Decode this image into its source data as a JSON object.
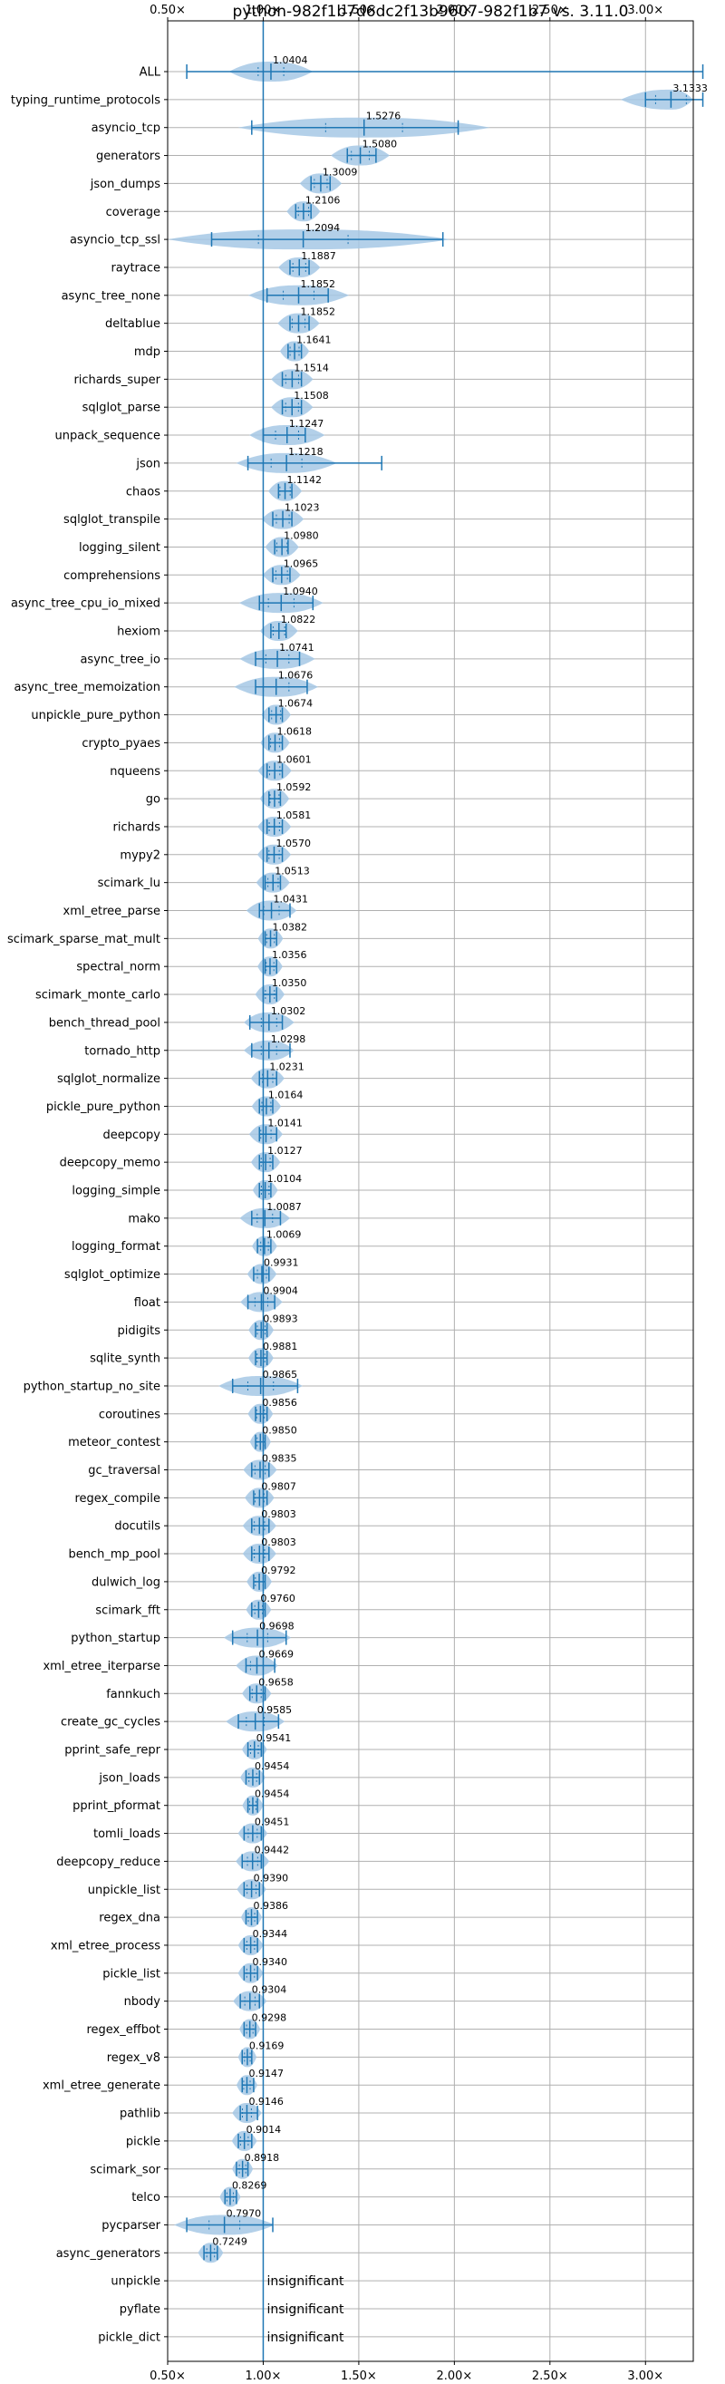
{
  "chart_data": {
    "type": "violin",
    "title": "python-982f1b7d6dc2f13b9607-982f1b7 vs. 3.11.0",
    "xlabel": "",
    "ylabel": "",
    "xlim": [
      0.5,
      3.25
    ],
    "x_ticks": [
      0.5,
      1.0,
      1.5,
      2.0,
      2.5,
      3.0
    ],
    "x_tick_labels": [
      "0.50×",
      "1.00×",
      "1.50×",
      "2.00×",
      "2.50×",
      "3.00×"
    ],
    "reference_line": 1.0,
    "grid": true,
    "color": "#1f77b4",
    "violin_color": "#a6c8e5",
    "insignificant_label": "insignificant",
    "benchmarks": [
      {
        "name": "ALL",
        "value": 1.0404,
        "label": "1.0404",
        "min": 0.6,
        "max": 3.3,
        "spread": 0.1
      },
      {
        "name": "typing_runtime_protocols",
        "value": 3.1333,
        "label": "3.1333",
        "min": 3.0,
        "max": 3.3,
        "spread": 0.12
      },
      {
        "name": "asyncio_tcp",
        "value": 1.5276,
        "label": "1.5276",
        "min": 0.94,
        "max": 2.02,
        "spread": 0.3
      },
      {
        "name": "generators",
        "value": 1.508,
        "label": "1.5080",
        "min": 1.44,
        "max": 1.59,
        "spread": 0.07
      },
      {
        "name": "json_dumps",
        "value": 1.3009,
        "label": "1.3009",
        "min": 1.25,
        "max": 1.35,
        "spread": 0.05
      },
      {
        "name": "coverage",
        "value": 1.2106,
        "label": "1.2106",
        "min": 1.17,
        "max": 1.25,
        "spread": 0.04
      },
      {
        "name": "asyncio_tcp_ssl",
        "value": 1.2094,
        "label": "1.2094",
        "min": 0.73,
        "max": 1.94,
        "spread": 0.35
      },
      {
        "name": "raytrace",
        "value": 1.1887,
        "label": "1.1887",
        "min": 1.14,
        "max": 1.24,
        "spread": 0.05
      },
      {
        "name": "async_tree_none",
        "value": 1.1852,
        "label": "1.1852",
        "min": 1.02,
        "max": 1.34,
        "spread": 0.12
      },
      {
        "name": "deltablue",
        "value": 1.1852,
        "label": "1.1852",
        "min": 1.14,
        "max": 1.24,
        "spread": 0.05
      },
      {
        "name": "mdp",
        "value": 1.1641,
        "label": "1.1641",
        "min": 1.13,
        "max": 1.2,
        "spread": 0.035
      },
      {
        "name": "richards_super",
        "value": 1.1514,
        "label": "1.1514",
        "min": 1.1,
        "max": 1.2,
        "spread": 0.05
      },
      {
        "name": "sqlglot_parse",
        "value": 1.1508,
        "label": "1.1508",
        "min": 1.1,
        "max": 1.2,
        "spread": 0.05
      },
      {
        "name": "unpack_sequence",
        "value": 1.1247,
        "label": "1.1247",
        "min": 1.0,
        "max": 1.22,
        "spread": 0.09
      },
      {
        "name": "json",
        "value": 1.1218,
        "label": "1.1218",
        "min": 0.92,
        "max": 1.62,
        "spread": 0.12
      },
      {
        "name": "chaos",
        "value": 1.1142,
        "label": "1.1142",
        "min": 1.08,
        "max": 1.15,
        "spread": 0.04
      },
      {
        "name": "sqlglot_transpile",
        "value": 1.1023,
        "label": "1.1023",
        "min": 1.05,
        "max": 1.15,
        "spread": 0.05
      },
      {
        "name": "logging_silent",
        "value": 1.098,
        "label": "1.0980",
        "min": 1.06,
        "max": 1.13,
        "spread": 0.04
      },
      {
        "name": "comprehensions",
        "value": 1.0965,
        "label": "1.0965",
        "min": 1.05,
        "max": 1.14,
        "spread": 0.045
      },
      {
        "name": "async_tree_cpu_io_mixed",
        "value": 1.094,
        "label": "1.0940",
        "min": 0.98,
        "max": 1.26,
        "spread": 0.1
      },
      {
        "name": "hexiom",
        "value": 1.0822,
        "label": "1.0822",
        "min": 1.04,
        "max": 1.12,
        "spread": 0.045
      },
      {
        "name": "async_tree_io",
        "value": 1.0741,
        "label": "1.0741",
        "min": 0.96,
        "max": 1.19,
        "spread": 0.09
      },
      {
        "name": "async_tree_memoization",
        "value": 1.0676,
        "label": "1.0676",
        "min": 0.96,
        "max": 1.23,
        "spread": 0.1
      },
      {
        "name": "unpickle_pure_python",
        "value": 1.0674,
        "label": "1.0674",
        "min": 1.03,
        "max": 1.1,
        "spread": 0.035
      },
      {
        "name": "crypto_pyaes",
        "value": 1.0618,
        "label": "1.0618",
        "min": 1.03,
        "max": 1.1,
        "spread": 0.035
      },
      {
        "name": "nqueens",
        "value": 1.0601,
        "label": "1.0601",
        "min": 1.02,
        "max": 1.1,
        "spread": 0.04
      },
      {
        "name": "go",
        "value": 1.0592,
        "label": "1.0592",
        "min": 1.03,
        "max": 1.09,
        "spread": 0.035
      },
      {
        "name": "richards",
        "value": 1.0581,
        "label": "1.0581",
        "min": 1.02,
        "max": 1.1,
        "spread": 0.04
      },
      {
        "name": "mypy2",
        "value": 1.057,
        "label": "1.0570",
        "min": 1.02,
        "max": 1.1,
        "spread": 0.04
      },
      {
        "name": "scimark_lu",
        "value": 1.0513,
        "label": "1.0513",
        "min": 1.01,
        "max": 1.09,
        "spread": 0.04
      },
      {
        "name": "xml_etree_parse",
        "value": 1.0431,
        "label": "1.0431",
        "min": 0.98,
        "max": 1.14,
        "spread": 0.06
      },
      {
        "name": "scimark_sparse_mat_mult",
        "value": 1.0382,
        "label": "1.0382",
        "min": 1.01,
        "max": 1.07,
        "spread": 0.03
      },
      {
        "name": "spectral_norm",
        "value": 1.0356,
        "label": "1.0356",
        "min": 1.01,
        "max": 1.07,
        "spread": 0.03
      },
      {
        "name": "scimark_monte_carlo",
        "value": 1.035,
        "label": "1.0350",
        "min": 1.0,
        "max": 1.07,
        "spread": 0.035
      },
      {
        "name": "bench_thread_pool",
        "value": 1.0302,
        "label": "1.0302",
        "min": 0.93,
        "max": 1.1,
        "spread": 0.06
      },
      {
        "name": "tornado_http",
        "value": 1.0298,
        "label": "1.0298",
        "min": 0.94,
        "max": 1.14,
        "spread": 0.06
      },
      {
        "name": "sqlglot_normalize",
        "value": 1.0231,
        "label": "1.0231",
        "min": 0.98,
        "max": 1.07,
        "spread": 0.04
      },
      {
        "name": "pickle_pure_python",
        "value": 1.0164,
        "label": "1.0164",
        "min": 0.98,
        "max": 1.05,
        "spread": 0.035
      },
      {
        "name": "deepcopy",
        "value": 1.0141,
        "label": "1.0141",
        "min": 0.98,
        "max": 1.07,
        "spread": 0.04
      },
      {
        "name": "deepcopy_memo",
        "value": 1.0127,
        "label": "1.0127",
        "min": 0.98,
        "max": 1.05,
        "spread": 0.035
      },
      {
        "name": "logging_simple",
        "value": 1.0104,
        "label": "1.0104",
        "min": 0.98,
        "max": 1.04,
        "spread": 0.03
      },
      {
        "name": "mako",
        "value": 1.0087,
        "label": "1.0087",
        "min": 0.94,
        "max": 1.09,
        "spread": 0.06
      },
      {
        "name": "logging_format",
        "value": 1.0069,
        "label": "1.0069",
        "min": 0.97,
        "max": 1.04,
        "spread": 0.03
      },
      {
        "name": "sqlglot_optimize",
        "value": 0.9931,
        "label": "0.9931",
        "min": 0.95,
        "max": 1.03,
        "spread": 0.035
      },
      {
        "name": "float",
        "value": 0.9904,
        "label": "0.9904",
        "min": 0.92,
        "max": 1.06,
        "spread": 0.05
      },
      {
        "name": "pidigits",
        "value": 0.9893,
        "label": "0.9893",
        "min": 0.96,
        "max": 1.02,
        "spread": 0.03
      },
      {
        "name": "sqlite_synth",
        "value": 0.9881,
        "label": "0.9881",
        "min": 0.96,
        "max": 1.02,
        "spread": 0.03
      },
      {
        "name": "python_startup_no_site",
        "value": 0.9865,
        "label": "0.9865",
        "min": 0.84,
        "max": 1.18,
        "spread": 0.1
      },
      {
        "name": "coroutines",
        "value": 0.9856,
        "label": "0.9856",
        "min": 0.96,
        "max": 1.02,
        "spread": 0.03
      },
      {
        "name": "meteor_contest",
        "value": 0.985,
        "label": "0.9850",
        "min": 0.96,
        "max": 1.01,
        "spread": 0.025
      },
      {
        "name": "gc_traversal",
        "value": 0.9835,
        "label": "0.9835",
        "min": 0.94,
        "max": 1.03,
        "spread": 0.04
      },
      {
        "name": "regex_compile",
        "value": 0.9807,
        "label": "0.9807",
        "min": 0.95,
        "max": 1.02,
        "spread": 0.035
      },
      {
        "name": "docutils",
        "value": 0.9803,
        "label": "0.9803",
        "min": 0.94,
        "max": 1.03,
        "spread": 0.04
      },
      {
        "name": "bench_mp_pool",
        "value": 0.9803,
        "label": "0.9803",
        "min": 0.94,
        "max": 1.03,
        "spread": 0.04
      },
      {
        "name": "dulwich_log",
        "value": 0.9792,
        "label": "0.9792",
        "min": 0.95,
        "max": 1.01,
        "spread": 0.03
      },
      {
        "name": "scimark_fft",
        "value": 0.976,
        "label": "0.9760",
        "min": 0.94,
        "max": 1.01,
        "spread": 0.03
      },
      {
        "name": "python_startup",
        "value": 0.9698,
        "label": "0.9698",
        "min": 0.84,
        "max": 1.12,
        "spread": 0.08
      },
      {
        "name": "xml_etree_iterparse",
        "value": 0.9669,
        "label": "0.9669",
        "min": 0.91,
        "max": 1.06,
        "spread": 0.05
      },
      {
        "name": "fannkuch",
        "value": 0.9658,
        "label": "0.9658",
        "min": 0.93,
        "max": 1.01,
        "spread": 0.035
      },
      {
        "name": "create_gc_cycles",
        "value": 0.9585,
        "label": "0.9585",
        "min": 0.87,
        "max": 1.08,
        "spread": 0.07
      },
      {
        "name": "pprint_safe_repr",
        "value": 0.9541,
        "label": "0.9541",
        "min": 0.92,
        "max": 0.99,
        "spread": 0.03
      },
      {
        "name": "json_loads",
        "value": 0.9454,
        "label": "0.9454",
        "min": 0.91,
        "max": 0.98,
        "spread": 0.03
      },
      {
        "name": "pprint_pformat",
        "value": 0.9454,
        "label": "0.9454",
        "min": 0.92,
        "max": 0.97,
        "spread": 0.025
      },
      {
        "name": "tomli_loads",
        "value": 0.9451,
        "label": "0.9451",
        "min": 0.9,
        "max": 0.99,
        "spread": 0.035
      },
      {
        "name": "deepcopy_reduce",
        "value": 0.9442,
        "label": "0.9442",
        "min": 0.89,
        "max": 0.99,
        "spread": 0.04
      },
      {
        "name": "unpickle_list",
        "value": 0.939,
        "label": "0.9390",
        "min": 0.9,
        "max": 0.98,
        "spread": 0.035
      },
      {
        "name": "regex_dna",
        "value": 0.9386,
        "label": "0.9386",
        "min": 0.91,
        "max": 0.97,
        "spread": 0.025
      },
      {
        "name": "xml_etree_process",
        "value": 0.9344,
        "label": "0.9344",
        "min": 0.9,
        "max": 0.97,
        "spread": 0.03
      },
      {
        "name": "pickle_list",
        "value": 0.934,
        "label": "0.9340",
        "min": 0.9,
        "max": 0.97,
        "spread": 0.03
      },
      {
        "name": "nbody",
        "value": 0.9304,
        "label": "0.9304",
        "min": 0.88,
        "max": 0.98,
        "spread": 0.04
      },
      {
        "name": "regex_effbot",
        "value": 0.9298,
        "label": "0.9298",
        "min": 0.9,
        "max": 0.96,
        "spread": 0.025
      },
      {
        "name": "regex_v8",
        "value": 0.9169,
        "label": "0.9169",
        "min": 0.89,
        "max": 0.94,
        "spread": 0.022
      },
      {
        "name": "xml_etree_generate",
        "value": 0.9147,
        "label": "0.9147",
        "min": 0.89,
        "max": 0.95,
        "spread": 0.025
      },
      {
        "name": "pathlib",
        "value": 0.9146,
        "label": "0.9146",
        "min": 0.88,
        "max": 0.97,
        "spread": 0.035
      },
      {
        "name": "pickle",
        "value": 0.9014,
        "label": "0.9014",
        "min": 0.87,
        "max": 0.94,
        "spread": 0.03
      },
      {
        "name": "scimark_sor",
        "value": 0.8918,
        "label": "0.8918",
        "min": 0.86,
        "max": 0.92,
        "spread": 0.025
      },
      {
        "name": "telco",
        "value": 0.8269,
        "label": "0.8269",
        "min": 0.8,
        "max": 0.86,
        "spread": 0.025
      },
      {
        "name": "pycparser",
        "value": 0.797,
        "label": "0.7970",
        "min": 0.6,
        "max": 1.05,
        "spread": 0.12
      },
      {
        "name": "async_generators",
        "value": 0.7249,
        "label": "0.7249",
        "min": 0.69,
        "max": 0.76,
        "spread": 0.03
      },
      {
        "name": "unpickle",
        "value": null,
        "label": "",
        "insignificant": true
      },
      {
        "name": "pyflate",
        "value": null,
        "label": "",
        "insignificant": true
      },
      {
        "name": "pickle_dict",
        "value": null,
        "label": "",
        "insignificant": true
      }
    ]
  }
}
